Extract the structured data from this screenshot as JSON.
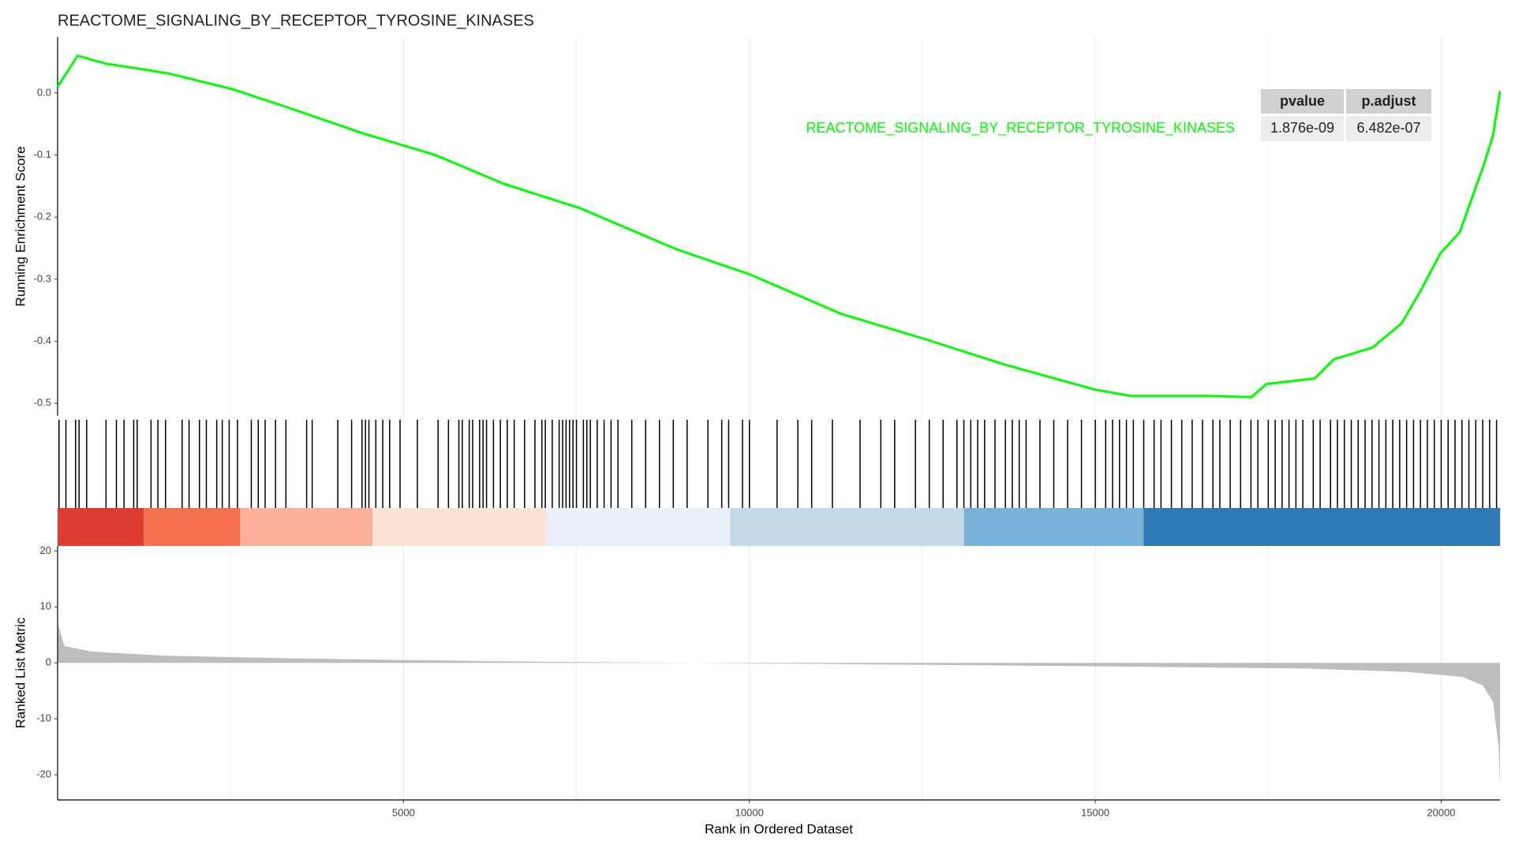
{
  "chart_data": [
    {
      "type": "line",
      "title": "REACTOME_SIGNALING_BY_RECEPTOR_TYROSINE_KINASES",
      "ylabel": "Running Enrichment Score",
      "series": [
        {
          "name": "REACTOME_SIGNALING_BY_RECEPTOR_TYROSINE_KINASES",
          "color": "#00ff00",
          "x": [
            1,
            290,
            700,
            1130,
            1620,
            2530,
            3370,
            4410,
            5460,
            6440,
            7560,
            8950,
            10000,
            11330,
            12580,
            13700,
            15000,
            15510,
            16630,
            17260,
            17470,
            18170,
            18450,
            19010,
            19430,
            19710,
            19990,
            20270,
            20470,
            20610,
            20750,
            20850
          ],
          "values": [
            0.01,
            0.06,
            0.047,
            0.04,
            0.031,
            0.006,
            -0.025,
            -0.065,
            -0.1,
            -0.146,
            -0.186,
            -0.252,
            -0.292,
            -0.356,
            -0.398,
            -0.438,
            -0.478,
            -0.488,
            -0.488,
            -0.49,
            -0.469,
            -0.46,
            -0.429,
            -0.41,
            -0.371,
            -0.317,
            -0.258,
            -0.224,
            -0.161,
            -0.118,
            -0.068,
            0.003
          ]
        }
      ],
      "xlim": [
        0,
        20850
      ],
      "ylim": [
        -0.52,
        0.09
      ],
      "yticks": [
        {
          "value": 0,
          "label": "0.0"
        },
        -0.1,
        -0.2,
        -0.3,
        -0.4,
        -0.5
      ],
      "xticks": [
        5000,
        10000,
        15000,
        20000
      ],
      "xminor": [
        2500,
        7500,
        12500,
        17500
      ],
      "grid": true,
      "table": {
        "header": [
          "pvalue",
          "p.adjust"
        ],
        "rows": [
          [
            "REACTOME_SIGNALING_BY_RECEPTOR_TYROSINE_KINASES",
            "1.876e-09",
            "6.482e-07"
          ]
        ]
      }
    },
    {
      "type": "rug",
      "xlim": [
        0,
        20850
      ],
      "color": "#000000",
      "hits": [
        20,
        120,
        260,
        310,
        420,
        700,
        850,
        960,
        1100,
        1150,
        1350,
        1450,
        1560,
        1800,
        1900,
        2050,
        2150,
        2300,
        2380,
        2480,
        2600,
        2800,
        2900,
        3000,
        3150,
        3300,
        3600,
        3680,
        4050,
        4250,
        4400,
        4450,
        4500,
        4600,
        4700,
        4800,
        4950,
        5200,
        5500,
        5650,
        5800,
        5850,
        5950,
        6000,
        6100,
        6150,
        6200,
        6300,
        6400,
        6500,
        6600,
        6750,
        6900,
        7000,
        7050,
        7150,
        7250,
        7300,
        7350,
        7400,
        7450,
        7500,
        7600,
        7650,
        7700,
        7800,
        7900,
        8000,
        8100,
        8300,
        8500,
        8700,
        8900,
        9100,
        9400,
        9600,
        9700,
        9900,
        10000,
        10400,
        10700,
        10900,
        11200,
        11600,
        11900,
        12100,
        12400,
        12600,
        12800,
        13000,
        13100,
        13200,
        13300,
        13400,
        13550,
        13700,
        13800,
        13900,
        14000,
        14200,
        14400,
        14600,
        14800,
        15000,
        15150,
        15250,
        15350,
        15450,
        15550,
        15700,
        15850,
        15950,
        16100,
        16250,
        16400,
        16550,
        16700,
        16800,
        16950,
        17100,
        17250,
        17350,
        17500,
        17600,
        17700,
        17800,
        17900,
        18000,
        18150,
        18250,
        18400,
        18500,
        18600,
        18700,
        18800,
        18900,
        19000,
        19100,
        19200,
        19300,
        19400,
        19500,
        19600,
        19700,
        19800,
        19900,
        20000,
        20100,
        20200,
        20300,
        20400,
        20500,
        20600,
        20700,
        20800
      ],
      "bands": [
        0,
        1243,
        2640,
        4553,
        7067,
        9721,
        13101,
        15698,
        20852
      ],
      "band_colors": [
        "#de3b33",
        "#f4704f",
        "#fbb19a",
        "#fde3d6",
        "#eaf0fa",
        "#c4d9e6",
        "#78b2d8",
        "#2f79b4"
      ]
    },
    {
      "type": "area",
      "ylabel": "Ranked List Metric",
      "xlabel": "Rank in Ordered Dataset",
      "color": "#bdbdbd",
      "x": [
        1,
        100,
        500,
        1500,
        3000,
        5000,
        7000,
        9200,
        12000,
        15000,
        18000,
        19500,
        20300,
        20600,
        20750,
        20830,
        20850
      ],
      "values": [
        7,
        3,
        2,
        1.3,
        0.9,
        0.5,
        0.2,
        0,
        -0.3,
        -0.6,
        -1,
        -1.6,
        -2.5,
        -4,
        -7,
        -15,
        -22
      ],
      "xlim": [
        0,
        20850
      ],
      "ylim": [
        -24.5,
        20.9
      ],
      "yticks": [
        20,
        10,
        0,
        -10,
        -20
      ],
      "xticks": [
        5000,
        10000,
        15000,
        20000
      ],
      "xminor": [
        2500,
        7500,
        12500,
        17500
      ],
      "grid": true
    }
  ]
}
